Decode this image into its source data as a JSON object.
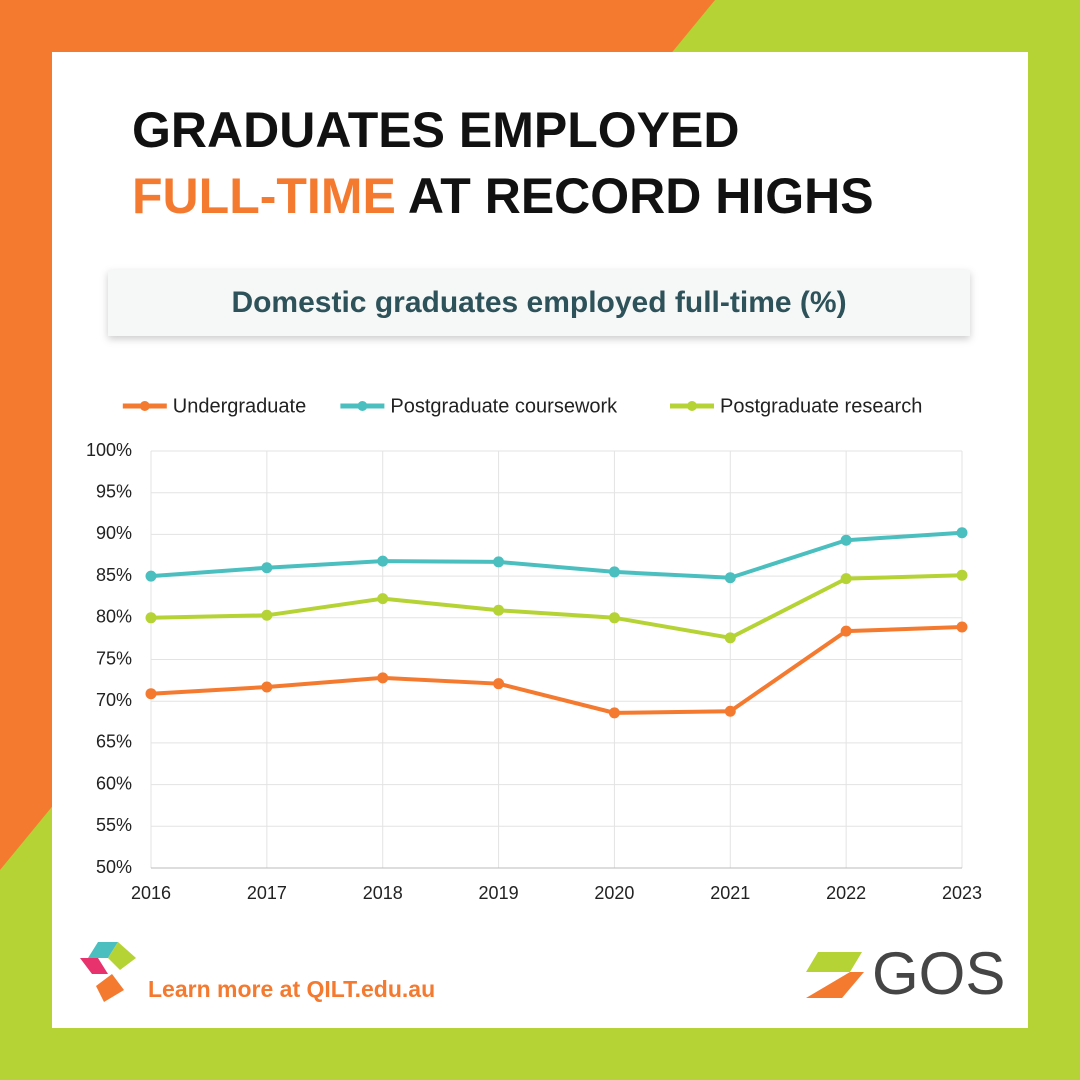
{
  "header": {
    "title_line1": "GRADUATES EMPLOYED",
    "title_highlight": "FULL-TIME",
    "title_rest": "AT RECORD HIGHS"
  },
  "chart_data": {
    "type": "line",
    "title": "Domestic graduates employed full-time (%)",
    "categories": [
      "2016",
      "2017",
      "2018",
      "2019",
      "2020",
      "2021",
      "2022",
      "2023"
    ],
    "series": [
      {
        "name": "Undergraduate",
        "color": "#f47a30",
        "values": [
          70.9,
          71.7,
          72.8,
          72.1,
          68.6,
          68.8,
          78.4,
          78.9
        ]
      },
      {
        "name": "Postgraduate coursework",
        "color": "#4bbfbf",
        "values": [
          85.0,
          86.0,
          86.8,
          86.7,
          85.5,
          84.8,
          89.3,
          90.2
        ]
      },
      {
        "name": "Postgraduate research",
        "color": "#b5d334",
        "values": [
          80.0,
          80.3,
          82.3,
          80.9,
          80.0,
          77.6,
          84.7,
          85.1
        ]
      }
    ],
    "ylim": [
      50,
      100
    ],
    "yticks": [
      {
        "value": 50,
        "label": "50%"
      },
      {
        "value": 55,
        "label": "55%"
      },
      {
        "value": 60,
        "label": "60%"
      },
      {
        "value": 65,
        "label": "65%"
      },
      {
        "value": 70,
        "label": "70%"
      },
      {
        "value": 75,
        "label": "75%"
      },
      {
        "value": 80,
        "label": "80%"
      },
      {
        "value": 85,
        "label": "85%"
      },
      {
        "value": 90,
        "label": "90%"
      },
      {
        "value": 95,
        "label": "95%"
      },
      {
        "value": 100,
        "label": "100%"
      }
    ],
    "grid": true,
    "legend": "top"
  },
  "footer": {
    "link": "Learn more at QILT.edu.au",
    "logo": "GOS"
  }
}
